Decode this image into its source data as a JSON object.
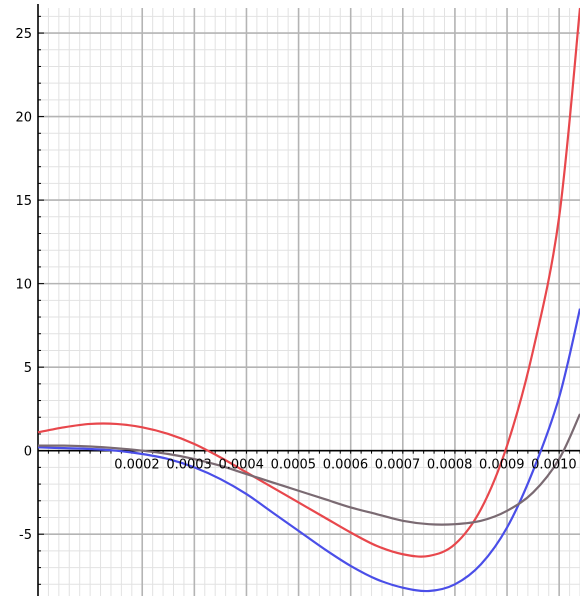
{
  "chart_data": {
    "type": "line",
    "title": "",
    "xlabel": "",
    "ylabel": "",
    "xlim": [
      0.0,
      0.00104
    ],
    "ylim": [
      -8.7,
      26.5
    ],
    "grid": true,
    "x_ticks": [
      0.0002,
      0.0003,
      0.0004,
      0.0005,
      0.0006,
      0.0007,
      0.0008,
      0.0009,
      0.001
    ],
    "x_tick_labels": [
      "0.0002",
      "0.0003",
      "0.0004",
      "0.0005",
      "0.0006",
      "0.0007",
      "0.0008",
      "0.0009",
      "0.0010"
    ],
    "y_ticks": [
      -5,
      0,
      5,
      10,
      15,
      20,
      25
    ],
    "y_tick_labels": [
      "-5",
      "0",
      "5",
      "10",
      "15",
      "20",
      "25"
    ],
    "series": [
      {
        "color": "#e8474c",
        "points": [
          [
            0.0,
            1.1
          ],
          [
            5e-05,
            1.4
          ],
          [
            0.0001,
            1.6
          ],
          [
            0.00015,
            1.6
          ],
          [
            0.0002,
            1.4
          ],
          [
            0.00025,
            1.0
          ],
          [
            0.0003,
            0.4
          ],
          [
            0.00035,
            -0.4
          ],
          [
            0.0004,
            -1.3
          ],
          [
            0.00045,
            -2.2
          ],
          [
            0.0005,
            -3.1
          ],
          [
            0.00055,
            -4.0
          ],
          [
            0.0006,
            -4.9
          ],
          [
            0.00065,
            -5.7
          ],
          [
            0.0007,
            -6.2
          ],
          [
            0.00075,
            -6.3
          ],
          [
            0.0008,
            -5.6
          ],
          [
            0.00085,
            -3.5
          ],
          [
            0.0009,
            0.3
          ],
          [
            0.00095,
            6.0
          ],
          [
            0.001,
            14.0
          ],
          [
            0.00104,
            26.5
          ]
        ]
      },
      {
        "color": "#4a4ee8",
        "points": [
          [
            0.0,
            0.2
          ],
          [
            5e-05,
            0.15
          ],
          [
            0.0001,
            0.1
          ],
          [
            0.00015,
            0.0
          ],
          [
            0.0002,
            -0.2
          ],
          [
            0.00025,
            -0.5
          ],
          [
            0.0003,
            -1.0
          ],
          [
            0.00035,
            -1.7
          ],
          [
            0.0004,
            -2.6
          ],
          [
            0.00045,
            -3.7
          ],
          [
            0.0005,
            -4.8
          ],
          [
            0.00055,
            -5.9
          ],
          [
            0.0006,
            -6.9
          ],
          [
            0.00065,
            -7.7
          ],
          [
            0.0007,
            -8.2
          ],
          [
            0.00075,
            -8.4
          ],
          [
            0.0008,
            -8.0
          ],
          [
            0.00085,
            -6.8
          ],
          [
            0.0009,
            -4.6
          ],
          [
            0.00095,
            -1.2
          ],
          [
            0.001,
            3.2
          ],
          [
            0.00104,
            8.5
          ]
        ]
      },
      {
        "color": "#7a6a72",
        "points": [
          [
            0.0,
            0.3
          ],
          [
            5e-05,
            0.3
          ],
          [
            0.0001,
            0.25
          ],
          [
            0.00015,
            0.15
          ],
          [
            0.0002,
            0.0
          ],
          [
            0.00025,
            -0.2
          ],
          [
            0.0003,
            -0.5
          ],
          [
            0.00035,
            -0.9
          ],
          [
            0.0004,
            -1.4
          ],
          [
            0.00045,
            -1.9
          ],
          [
            0.0005,
            -2.4
          ],
          [
            0.00055,
            -2.9
          ],
          [
            0.0006,
            -3.4
          ],
          [
            0.00065,
            -3.8
          ],
          [
            0.0007,
            -4.2
          ],
          [
            0.00075,
            -4.4
          ],
          [
            0.0008,
            -4.4
          ],
          [
            0.00085,
            -4.2
          ],
          [
            0.0009,
            -3.6
          ],
          [
            0.00095,
            -2.5
          ],
          [
            0.001,
            -0.5
          ],
          [
            0.00104,
            2.2
          ]
        ]
      }
    ]
  }
}
